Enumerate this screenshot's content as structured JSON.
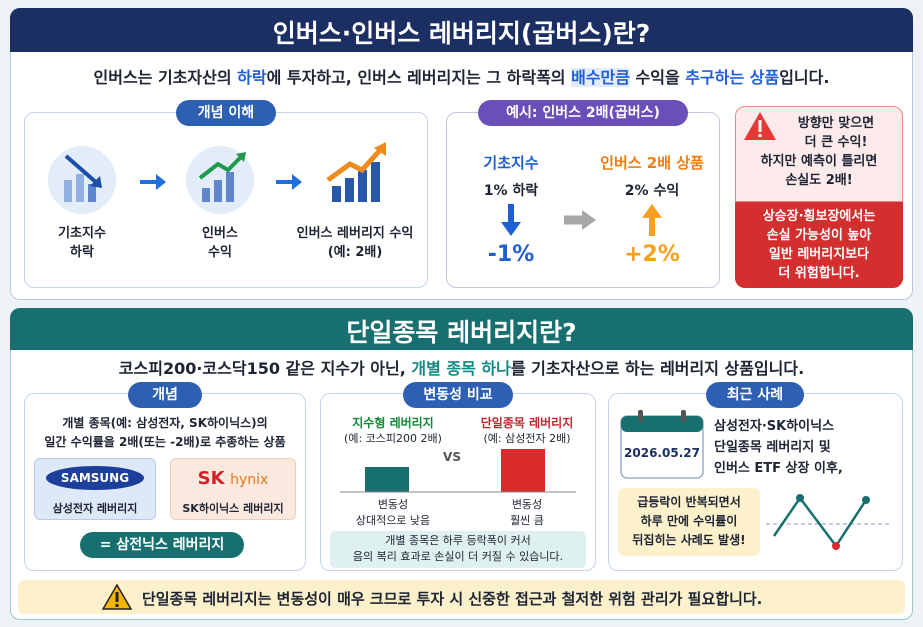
{
  "section1": {
    "title": "인버스·인버스 레버리지(곱버스)란?",
    "intro": [
      "인버스는 기초자산의 ",
      "하락",
      "에 투자하고, 인버스 레버리지는 그 하락폭의 ",
      "배수만큼",
      " 수익을 ",
      "추구하는 상품",
      "입니다."
    ],
    "concept": {
      "label": "개념 이해",
      "steps": [
        [
          "기초지수",
          "하락"
        ],
        [
          "인버스",
          "수익"
        ],
        [
          "인버스 레버리지 수익",
          "(예: 2배)"
        ]
      ]
    },
    "example": {
      "label": "예시: 인버스 2배(곱버스)",
      "left": {
        "name": "기초지수",
        "desc": "1% 하락",
        "value": "-1%"
      },
      "right": {
        "name": "인버스 2배 상품",
        "desc": "2% 수익",
        "value": "+2%"
      }
    },
    "warning": {
      "top": [
        "방향만 맞으면",
        "더 큰 수익!",
        "하지만 예측이 틀리면",
        "손실도 2배!"
      ],
      "bottom": [
        "상승장·횡보장에서는",
        "손실 가능성이 높아",
        "일반 레버리지보다",
        "더 위험합니다."
      ]
    }
  },
  "section2": {
    "title": "단일종목 레버리지란?",
    "intro": [
      "코스피200·코스닥150 같은 지수가 아닌, ",
      "개별 종목 하나",
      "를 기초자산으로 하는 레버리지 상품입니다."
    ],
    "concept": {
      "label": "개념",
      "desc": [
        "개별 종목(예: 삼성전자, SK하이닉스)의",
        "일간 수익률을 2배(또는 -2배)로 추종하는 상품"
      ],
      "cards": [
        {
          "logo": [
            "SAMSUNG"
          ],
          "name": "삼성전자 레버리지"
        },
        {
          "logo": [
            "SK",
            "hynix"
          ],
          "name": "SK하이닉스 레버리지"
        }
      ],
      "result": "= 삼전닉스 레버리지"
    },
    "volatility": {
      "label": "변동성 비교",
      "left": {
        "name": "지수형 레버리지",
        "example": "(예: 코스피200 2배)",
        "desc": [
          "변동성",
          "상대적으로 낮음"
        ]
      },
      "vs": "VS",
      "right": {
        "name": "단일종목 레버리지",
        "example": "(예: 삼성전자 2배)",
        "desc": [
          "변동성",
          "훨씬 큼"
        ]
      },
      "note": [
        "개별 종목은 하루 등락폭이 커서",
        "음의 복리 효과로 손실이 더 커질 수 있습니다."
      ]
    },
    "recent": {
      "label": "최근 사례",
      "date": "2026.05.27",
      "desc": [
        "삼성전자·SK하이닉스",
        "단일종목 레버리지 및",
        "인버스 ETF 상장 이후,"
      ],
      "note": [
        "급등락이 반복되면서",
        "하루 만에 수익률이",
        "뒤집히는 사례도 발생!"
      ]
    },
    "footer": "단일종목 레버리지는 변동성이 매우 크므로 투자 시 신중한 접근과 철저한 위험 관리가 필요합니다."
  }
}
